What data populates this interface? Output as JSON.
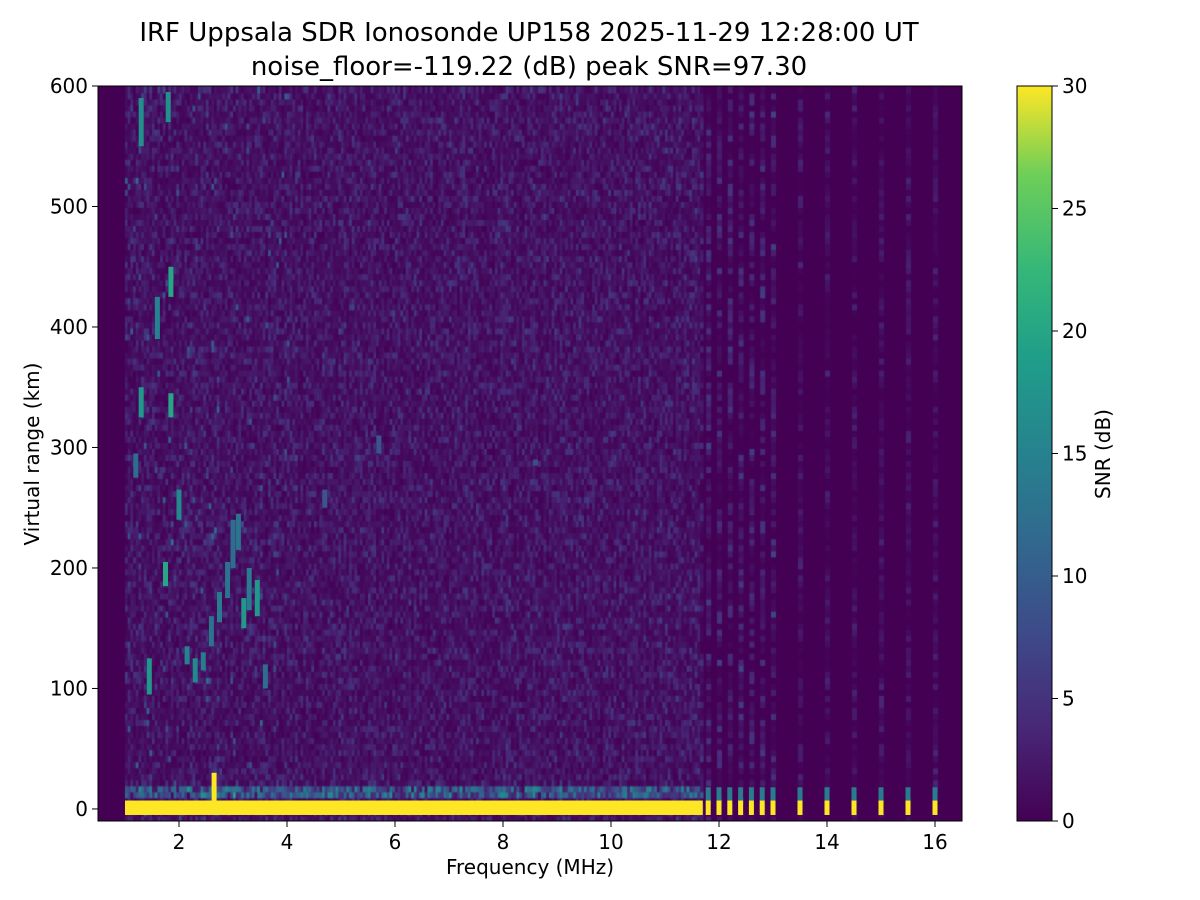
{
  "chart_data": {
    "type": "heatmap",
    "title": "IRF Uppsala SDR Ionosonde UP158 2025-11-29 12:28:00  UT",
    "subtitle": "noise_floor=-119.22 (dB) peak SNR=97.30",
    "xlabel": "Frequency (MHz)",
    "ylabel": "Virtual range (km)",
    "xlim": [
      0.5,
      16.5
    ],
    "ylim": [
      -10,
      600
    ],
    "xticks": [
      "2",
      "4",
      "6",
      "8",
      "10",
      "12",
      "14",
      "16"
    ],
    "yticks": [
      "0",
      "100",
      "200",
      "300",
      "400",
      "500",
      "600"
    ],
    "colorbar": {
      "label": "SNR (dB)",
      "clim": [
        0,
        30
      ],
      "ticks": [
        "0",
        "5",
        "10",
        "15",
        "20",
        "25",
        "30"
      ],
      "colormap": "viridis"
    },
    "sweep": {
      "continuous_mhz": [
        1.0,
        11.7
      ],
      "discrete_mhz": [
        11.8,
        12.0,
        12.2,
        12.4,
        12.6,
        12.8,
        13.0,
        13.5,
        14.0,
        14.5,
        15.0,
        15.5,
        16.0
      ]
    },
    "ground_band": {
      "range_km": [
        -5,
        7
      ],
      "snr_db": 30
    },
    "echoes": [
      {
        "f": 1.3,
        "r": [
          325,
          350
        ],
        "snr": 18
      },
      {
        "f": 1.3,
        "r": [
          550,
          590
        ],
        "snr": 17
      },
      {
        "f": 1.2,
        "r": [
          275,
          295
        ],
        "snr": 12
      },
      {
        "f": 1.45,
        "r": [
          95,
          125
        ],
        "snr": 18
      },
      {
        "f": 1.6,
        "r": [
          390,
          425
        ],
        "snr": 15
      },
      {
        "f": 1.75,
        "r": [
          185,
          205
        ],
        "snr": 20
      },
      {
        "f": 1.85,
        "r": [
          325,
          345
        ],
        "snr": 20
      },
      {
        "f": 1.85,
        "r": [
          425,
          450
        ],
        "snr": 20
      },
      {
        "f": 1.8,
        "r": [
          570,
          595
        ],
        "snr": 17
      },
      {
        "f": 2.0,
        "r": [
          240,
          265
        ],
        "snr": 16
      },
      {
        "f": 2.15,
        "r": [
          120,
          135
        ],
        "snr": 15
      },
      {
        "f": 2.3,
        "r": [
          105,
          125
        ],
        "snr": 16
      },
      {
        "f": 2.45,
        "r": [
          115,
          130
        ],
        "snr": 14
      },
      {
        "f": 2.6,
        "r": [
          135,
          160
        ],
        "snr": 13
      },
      {
        "f": 2.75,
        "r": [
          155,
          180
        ],
        "snr": 14
      },
      {
        "f": 2.9,
        "r": [
          175,
          205
        ],
        "snr": 13
      },
      {
        "f": 3.0,
        "r": [
          200,
          240
        ],
        "snr": 12
      },
      {
        "f": 3.1,
        "r": [
          215,
          245
        ],
        "snr": 13
      },
      {
        "f": 3.2,
        "r": [
          150,
          175
        ],
        "snr": 18
      },
      {
        "f": 3.3,
        "r": [
          165,
          200
        ],
        "snr": 14
      },
      {
        "f": 3.45,
        "r": [
          160,
          190
        ],
        "snr": 18
      },
      {
        "f": 3.6,
        "r": [
          100,
          120
        ],
        "snr": 12
      },
      {
        "f": 5.7,
        "r": [
          295,
          310
        ],
        "snr": 9
      },
      {
        "f": 4.7,
        "r": [
          250,
          265
        ],
        "snr": 9
      },
      {
        "f": 8.6,
        "r": [
          285,
          290
        ],
        "snr": 8
      },
      {
        "f": 2.65,
        "r": [
          -5,
          30
        ],
        "snr": 30
      }
    ]
  }
}
